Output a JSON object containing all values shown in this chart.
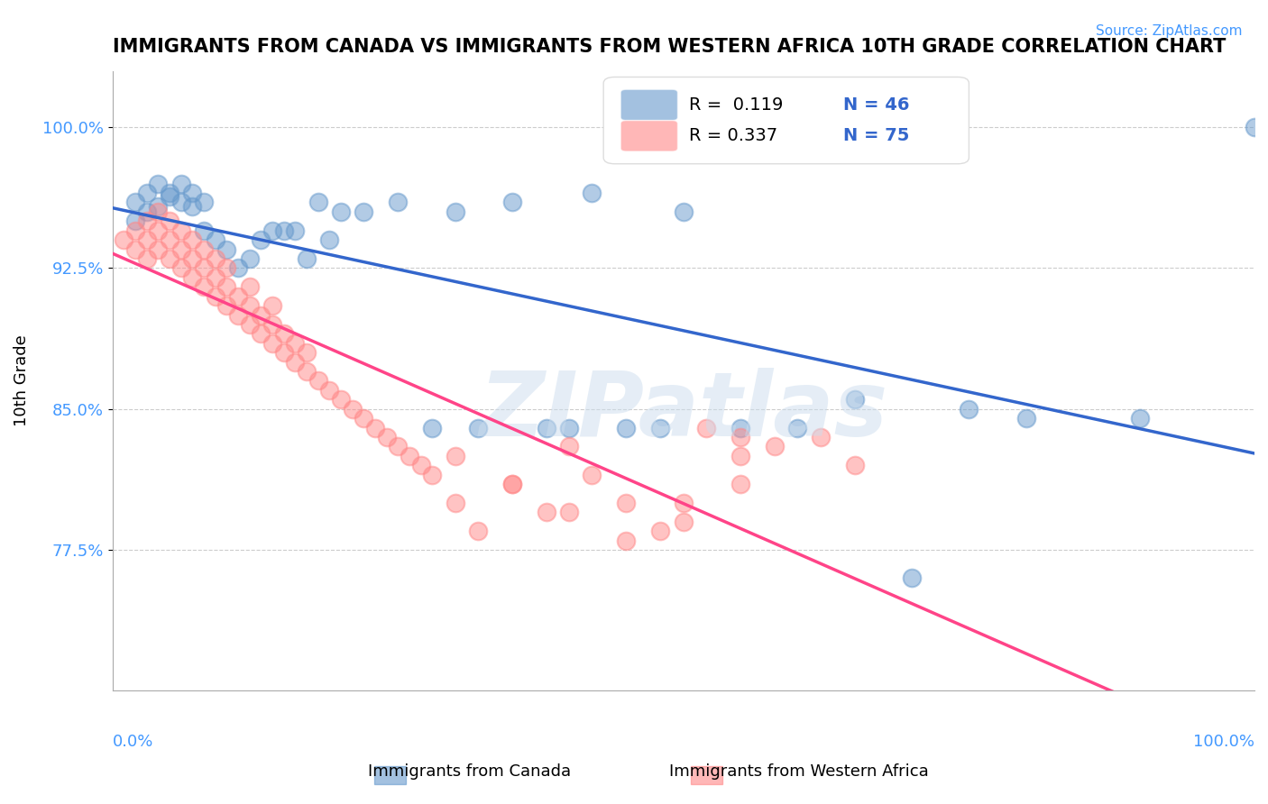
{
  "title": "IMMIGRANTS FROM CANADA VS IMMIGRANTS FROM WESTERN AFRICA 10TH GRADE CORRELATION CHART",
  "source": "Source: ZipAtlas.com",
  "xlabel_bottom_left": "0.0%",
  "xlabel_bottom_right": "100.0%",
  "ylabel": "10th Grade",
  "ytick_labels": [
    "77.5%",
    "85.0%",
    "92.5%",
    "100.0%"
  ],
  "ytick_values": [
    0.775,
    0.85,
    0.925,
    1.0
  ],
  "xlim": [
    0.0,
    1.0
  ],
  "ylim": [
    0.7,
    1.03
  ],
  "legend_r_canada": "R =  0.119",
  "legend_n_canada": "N = 46",
  "legend_r_africa": "R = 0.337",
  "legend_n_africa": "N = 75",
  "color_canada": "#6699CC",
  "color_africa": "#FF8888",
  "color_canada_line": "#3366CC",
  "color_africa_line": "#FF4488",
  "watermark_text": "ZIPatlas",
  "watermark_color": "#CCDDEE",
  "canada_x": [
    0.02,
    0.03,
    0.03,
    0.04,
    0.02,
    0.05,
    0.06,
    0.07,
    0.08,
    0.04,
    0.05,
    0.06,
    0.07,
    0.08,
    0.09,
    0.1,
    0.11,
    0.12,
    0.13,
    0.14,
    0.15,
    0.16,
    0.17,
    0.18,
    0.19,
    0.2,
    0.22,
    0.25,
    0.28,
    0.3,
    0.32,
    0.35,
    0.38,
    0.4,
    0.42,
    0.45,
    0.48,
    0.5,
    0.55,
    0.6,
    0.65,
    0.7,
    0.75,
    0.8,
    0.9,
    1.0
  ],
  "canada_y": [
    0.96,
    0.955,
    0.965,
    0.958,
    0.95,
    0.963,
    0.97,
    0.958,
    0.96,
    0.97,
    0.965,
    0.96,
    0.965,
    0.945,
    0.94,
    0.935,
    0.925,
    0.93,
    0.94,
    0.945,
    0.945,
    0.945,
    0.93,
    0.96,
    0.94,
    0.955,
    0.955,
    0.96,
    0.84,
    0.955,
    0.84,
    0.96,
    0.84,
    0.84,
    0.965,
    0.84,
    0.84,
    0.955,
    0.84,
    0.84,
    0.855,
    0.76,
    0.85,
    0.845,
    0.845,
    1.0
  ],
  "africa_x": [
    0.01,
    0.02,
    0.02,
    0.03,
    0.03,
    0.03,
    0.04,
    0.04,
    0.04,
    0.05,
    0.05,
    0.05,
    0.06,
    0.06,
    0.06,
    0.07,
    0.07,
    0.07,
    0.08,
    0.08,
    0.08,
    0.09,
    0.09,
    0.09,
    0.1,
    0.1,
    0.1,
    0.11,
    0.11,
    0.12,
    0.12,
    0.12,
    0.13,
    0.13,
    0.14,
    0.14,
    0.14,
    0.15,
    0.15,
    0.16,
    0.16,
    0.17,
    0.17,
    0.18,
    0.19,
    0.2,
    0.21,
    0.22,
    0.23,
    0.24,
    0.25,
    0.26,
    0.27,
    0.28,
    0.3,
    0.32,
    0.35,
    0.38,
    0.4,
    0.42,
    0.45,
    0.48,
    0.5,
    0.52,
    0.55,
    0.3,
    0.35,
    0.4,
    0.45,
    0.5,
    0.55,
    0.65,
    0.55,
    0.58,
    0.62
  ],
  "africa_y": [
    0.94,
    0.935,
    0.945,
    0.93,
    0.94,
    0.95,
    0.935,
    0.945,
    0.955,
    0.93,
    0.94,
    0.95,
    0.925,
    0.935,
    0.945,
    0.92,
    0.93,
    0.94,
    0.915,
    0.925,
    0.935,
    0.91,
    0.92,
    0.93,
    0.905,
    0.915,
    0.925,
    0.9,
    0.91,
    0.895,
    0.905,
    0.915,
    0.89,
    0.9,
    0.885,
    0.895,
    0.905,
    0.88,
    0.89,
    0.875,
    0.885,
    0.87,
    0.88,
    0.865,
    0.86,
    0.855,
    0.85,
    0.845,
    0.84,
    0.835,
    0.83,
    0.825,
    0.82,
    0.815,
    0.8,
    0.785,
    0.81,
    0.795,
    0.83,
    0.815,
    0.8,
    0.785,
    0.79,
    0.84,
    0.835,
    0.825,
    0.81,
    0.795,
    0.78,
    0.8,
    0.81,
    0.82,
    0.825,
    0.83,
    0.835
  ]
}
